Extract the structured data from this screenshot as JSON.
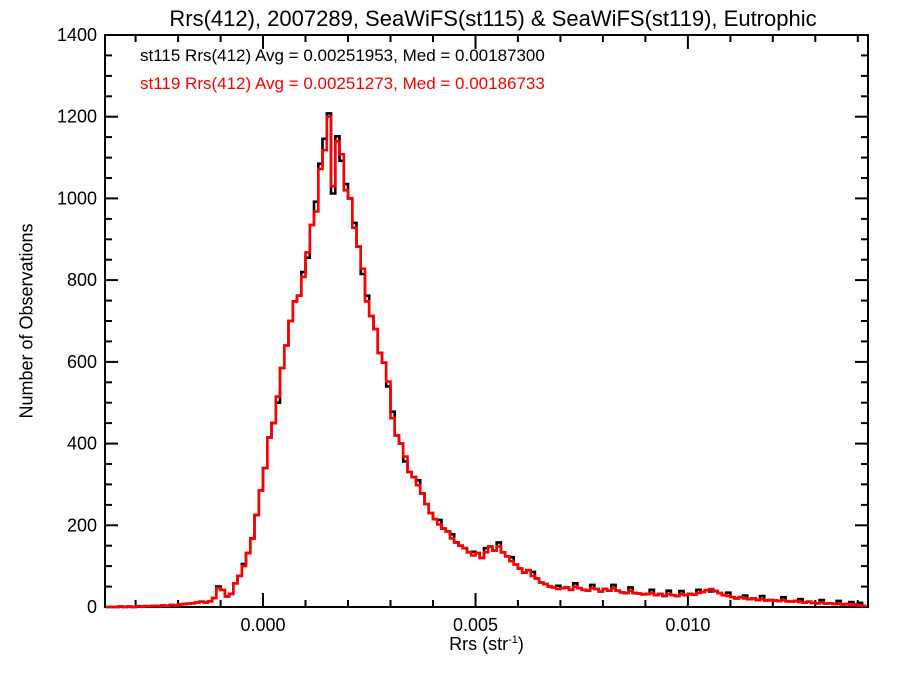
{
  "title": "Rrs(412), 2007289, SeaWiFS(st115) & SeaWiFS(st119), Eutrophic",
  "legend": {
    "st115": {
      "text": "st115 Rrs(412) Avg = 0.00251953, Med = 0.00187300",
      "color": "#000000"
    },
    "st119": {
      "text": "st119 Rrs(412) Avg = 0.00251273, Med = 0.00186733",
      "color": "#ff0000"
    }
  },
  "axes": {
    "x": {
      "label_prefix": "Rrs (str",
      "label_superscript": "-1",
      "label_suffix": ")",
      "tick_labels": [
        "0.000",
        "0.005",
        "0.010"
      ]
    },
    "y": {
      "label": "Number of Observations",
      "tick_labels": [
        "0",
        "200",
        "400",
        "600",
        "800",
        "1000",
        "1200",
        "1400"
      ]
    }
  },
  "colors": {
    "background": "#ffffff",
    "frame": "#000000",
    "st115": "#000000",
    "st119": "#ff0000"
  },
  "chart_data": {
    "type": "bar",
    "subtype": "step-histogram-overlay",
    "title": "Rrs(412), 2007289, SeaWiFS(st115) & SeaWiFS(st119), Eutrophic",
    "xlabel": "Rrs (str^-1)",
    "ylabel": "Number of Observations",
    "xlim": [
      -0.00372,
      0.01424
    ],
    "ylim": [
      0,
      1400
    ],
    "x_major_ticks": [
      {
        "value": 0.0,
        "label": "0.000"
      },
      {
        "value": 0.005,
        "label": "0.005"
      },
      {
        "value": 0.01,
        "label": "0.010"
      }
    ],
    "x_minor_step": 0.001,
    "y_major_ticks": [
      {
        "value": 0,
        "label": "0"
      },
      {
        "value": 200,
        "label": "200"
      },
      {
        "value": 400,
        "label": "400"
      },
      {
        "value": 600,
        "label": "600"
      },
      {
        "value": 800,
        "label": "800"
      },
      {
        "value": 1000,
        "label": "1000"
      },
      {
        "value": 1200,
        "label": "1200"
      },
      {
        "value": 1400,
        "label": "1400"
      }
    ],
    "y_minor_step": 50,
    "grid": false,
    "legend_position": "top-left-inside",
    "bin_start": -0.0037,
    "bin_width": 0.0001,
    "series": [
      {
        "name": "st115",
        "color": "#000000",
        "avg": 0.00251953,
        "med": 0.001873,
        "counts": [
          0,
          0,
          0,
          1,
          0,
          1,
          0,
          2,
          1,
          2,
          2,
          3,
          2,
          4,
          3,
          5,
          4,
          6,
          7,
          8,
          9,
          11,
          13,
          11,
          14,
          22,
          50,
          42,
          26,
          32,
          58,
          76,
          105,
          132,
          168,
          225,
          285,
          340,
          415,
          450,
          500,
          585,
          640,
          700,
          748,
          762,
          820,
          855,
          935,
          992,
          1085,
          1146,
          1208,
          1012,
          1152,
          1092,
          1035,
          1000,
          940,
          882,
          815,
          762,
          712,
          680,
          622,
          598,
          540,
          478,
          420,
          400,
          356,
          330,
          318,
          310,
          278,
          252,
          230,
          215,
          213,
          192,
          185,
          178,
          158,
          150,
          144,
          134,
          135,
          132,
          120,
          144,
          148,
          138,
          158,
          134,
          124,
          122,
          104,
          94,
          84,
          90,
          86,
          70,
          60,
          56,
          50,
          48,
          52,
          46,
          48,
          42,
          58,
          46,
          42,
          40,
          54,
          44,
          38,
          44,
          40,
          54,
          40,
          36,
          34,
          48,
          34,
          33,
          31,
          32,
          42,
          29,
          32,
          27,
          40,
          29,
          27,
          39,
          29,
          32,
          30,
          42,
          37,
          41,
          38,
          39,
          34,
          29,
          35,
          24,
          21,
          24,
          28,
          19,
          21,
          17,
          27,
          16,
          17,
          16,
          15,
          24,
          14,
          13,
          15,
          19,
          11,
          13,
          10,
          9,
          17,
          8,
          9,
          7,
          15,
          6,
          7,
          12,
          6,
          10,
          3
        ]
      },
      {
        "name": "st119",
        "color": "#ff0000",
        "avg": 0.00251273,
        "med": 0.00186733,
        "counts": [
          0,
          0,
          0,
          1,
          0,
          1,
          0,
          2,
          1,
          2,
          2,
          3,
          2,
          4,
          3,
          5,
          4,
          6,
          7,
          8,
          9,
          11,
          13,
          11,
          14,
          22,
          46,
          42,
          26,
          32,
          58,
          76,
          100,
          132,
          168,
          225,
          285,
          340,
          415,
          450,
          515,
          585,
          640,
          700,
          748,
          762,
          808,
          868,
          935,
          968,
          1072,
          1118,
          1200,
          1030,
          1140,
          1108,
          1020,
          1000,
          928,
          882,
          828,
          748,
          712,
          680,
          622,
          598,
          552,
          462,
          420,
          400,
          368,
          330,
          318,
          298,
          278,
          252,
          230,
          215,
          202,
          192,
          185,
          168,
          158,
          150,
          144,
          134,
          126,
          132,
          120,
          134,
          148,
          138,
          148,
          134,
          124,
          112,
          104,
          94,
          84,
          90,
          76,
          70,
          60,
          56,
          50,
          48,
          44,
          46,
          48,
          42,
          50,
          46,
          42,
          40,
          46,
          44,
          38,
          44,
          40,
          46,
          40,
          36,
          34,
          40,
          34,
          33,
          31,
          32,
          34,
          29,
          32,
          27,
          32,
          29,
          27,
          31,
          29,
          32,
          30,
          34,
          37,
          41,
          44,
          39,
          34,
          29,
          27,
          24,
          21,
          24,
          21,
          19,
          21,
          17,
          19,
          16,
          17,
          16,
          15,
          17,
          14,
          13,
          15,
          12,
          11,
          13,
          10,
          9,
          11,
          8,
          9,
          7,
          8,
          6,
          7,
          5,
          6,
          4,
          3
        ]
      }
    ]
  },
  "plot_geometry_note": "box axes, inward ticks on all four sides"
}
